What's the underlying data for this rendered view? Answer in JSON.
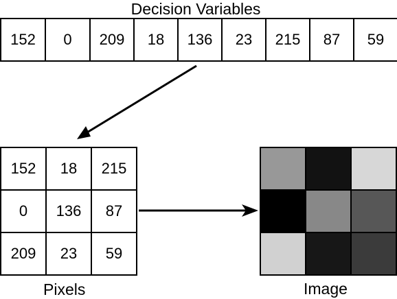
{
  "title": "Decision Variables",
  "decision_variables": [
    "152",
    "0",
    "209",
    "18",
    "136",
    "23",
    "215",
    "87",
    "59"
  ],
  "pixels_label": "Pixels",
  "pixels_grid": [
    [
      "152",
      "18",
      "215"
    ],
    [
      "0",
      "136",
      "87"
    ],
    [
      "209",
      "23",
      "59"
    ]
  ],
  "image_label": "Image",
  "image_colors": [
    [
      "#989898",
      "#121212",
      "#d7d7d7"
    ],
    [
      "#000000",
      "#888888",
      "#575757"
    ],
    [
      "#d1d1d1",
      "#171717",
      "#3b3b3b"
    ]
  ]
}
